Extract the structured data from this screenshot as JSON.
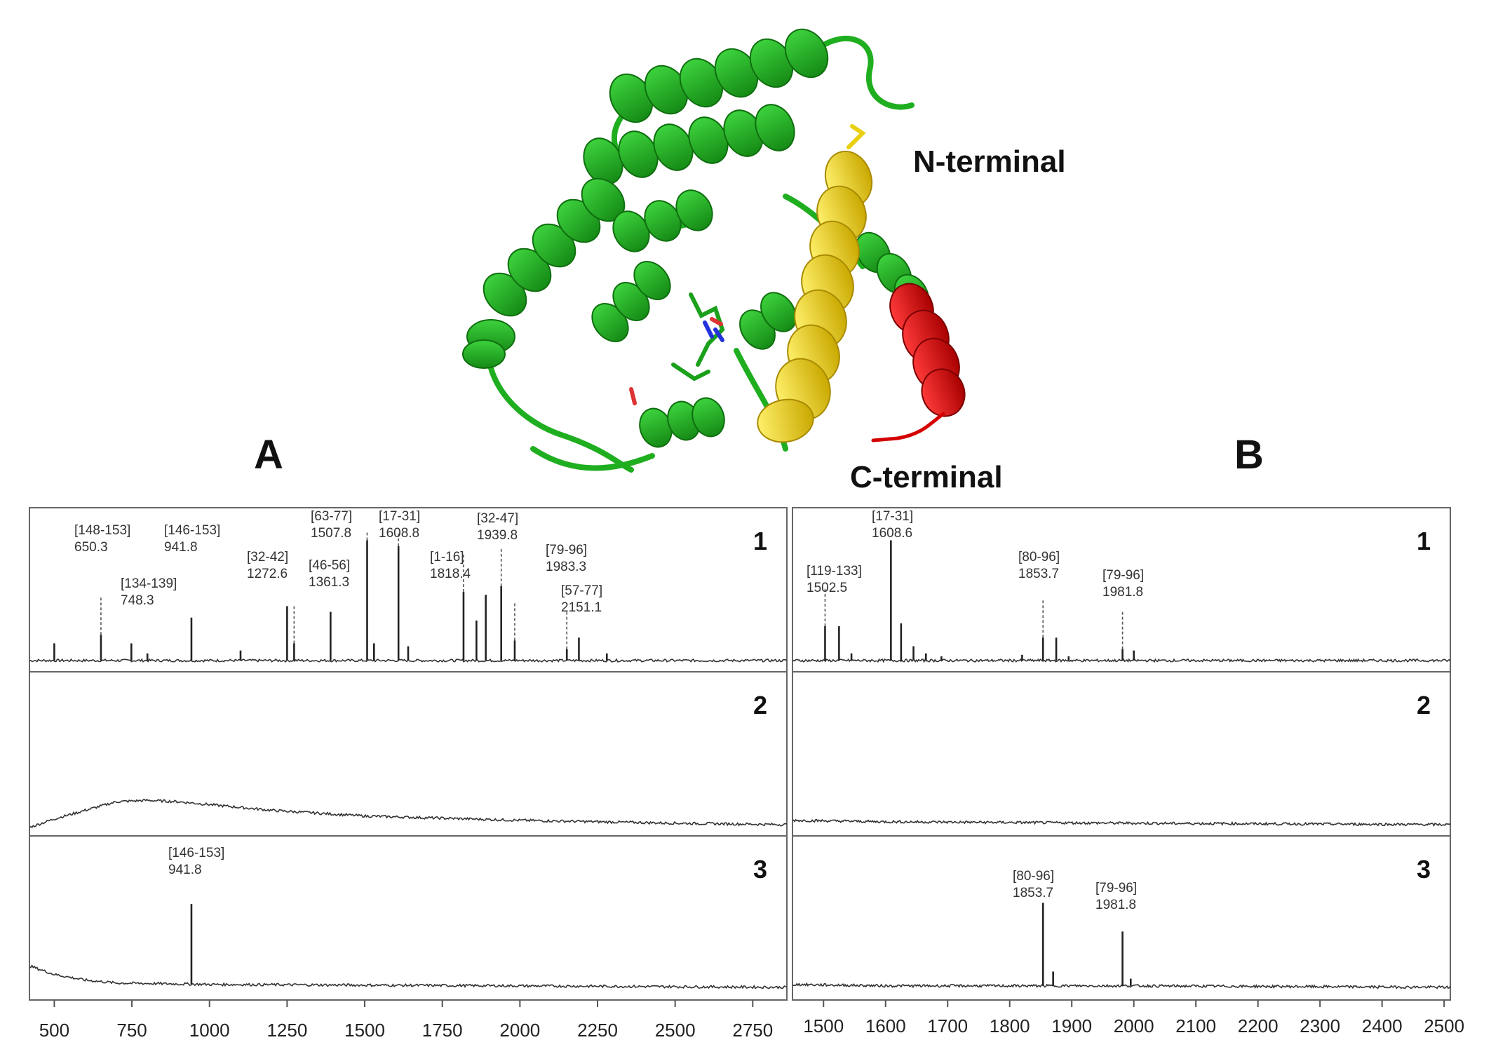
{
  "structure": {
    "n_label": "N-terminal",
    "c_label": "C-terminal",
    "colors": {
      "helix": "#22bb22",
      "helix_dark": "#158a15",
      "n_terminal": "#f0dc14",
      "c_terminal": "#e01010"
    }
  },
  "chart_data": [
    {
      "type": "line",
      "panel": "A",
      "x_ticks": [
        500,
        750,
        1000,
        1250,
        1500,
        1750,
        2000,
        2250,
        2500,
        2750
      ],
      "xlim": [
        420,
        2860
      ],
      "traces": [
        {
          "number": "1",
          "peaks": [
            {
              "x": 500,
              "h": 0.12
            },
            {
              "x": 650.3,
              "h": 0.18
            },
            {
              "x": 748.3,
              "h": 0.12
            },
            {
              "x": 800,
              "h": 0.05
            },
            {
              "x": 941.8,
              "h": 0.3
            },
            {
              "x": 1100,
              "h": 0.07
            },
            {
              "x": 1250,
              "h": 0.38
            },
            {
              "x": 1272.6,
              "h": 0.12
            },
            {
              "x": 1390,
              "h": 0.34
            },
            {
              "x": 1507.8,
              "h": 0.84
            },
            {
              "x": 1530,
              "h": 0.12
            },
            {
              "x": 1608.8,
              "h": 0.8
            },
            {
              "x": 1640,
              "h": 0.1
            },
            {
              "x": 1818.4,
              "h": 0.48
            },
            {
              "x": 1860,
              "h": 0.28
            },
            {
              "x": 1890,
              "h": 0.46
            },
            {
              "x": 1939.8,
              "h": 0.52
            },
            {
              "x": 1983.3,
              "h": 0.14
            },
            {
              "x": 2151.1,
              "h": 0.08
            },
            {
              "x": 2190,
              "h": 0.16
            },
            {
              "x": 2280,
              "h": 0.05
            }
          ],
          "labels": [
            {
              "range": "[148-153]",
              "mass": "650.3"
            },
            {
              "range": "[146-153]",
              "mass": "941.8"
            },
            {
              "range": "[134-139]",
              "mass": "748.3"
            },
            {
              "range": "[32-42]",
              "mass": "1272.6"
            },
            {
              "range": "[63-77]",
              "mass": "1507.8"
            },
            {
              "range": "[46-56]",
              "mass": "1361.3"
            },
            {
              "range": "[17-31]",
              "mass": "1608.8"
            },
            {
              "range": "[1-16]",
              "mass": "1818.4"
            },
            {
              "range": "[32-47]",
              "mass": "1939.8"
            },
            {
              "range": "[79-96]",
              "mass": "1983.3"
            },
            {
              "range": "[57-77]",
              "mass": "2151.1"
            }
          ]
        },
        {
          "number": "2",
          "baseline": [
            [
              420,
              0.0
            ],
            [
              500,
              0.06
            ],
            [
              600,
              0.12
            ],
            [
              700,
              0.18
            ],
            [
              800,
              0.19
            ],
            [
              900,
              0.18
            ],
            [
              1000,
              0.16
            ],
            [
              1200,
              0.12
            ],
            [
              1500,
              0.08
            ],
            [
              2000,
              0.05
            ],
            [
              2500,
              0.03
            ],
            [
              2860,
              0.02
            ]
          ],
          "peaks": [],
          "labels": []
        },
        {
          "number": "3",
          "baseline": [
            [
              420,
              0.18
            ],
            [
              500,
              0.12
            ],
            [
              600,
              0.08
            ],
            [
              700,
              0.06
            ],
            [
              1000,
              0.05
            ],
            [
              2000,
              0.04
            ],
            [
              2860,
              0.03
            ]
          ],
          "peaks": [
            {
              "x": 941.8,
              "h": 0.56
            }
          ],
          "labels": [
            {
              "range": "[146-153]",
              "mass": "941.8"
            }
          ]
        }
      ]
    },
    {
      "type": "line",
      "panel": "B",
      "x_ticks": [
        1500,
        1600,
        1700,
        1800,
        1900,
        2000,
        2100,
        2200,
        2300,
        2400,
        2500
      ],
      "xlim": [
        1450,
        2510
      ],
      "traces": [
        {
          "number": "1",
          "peaks": [
            {
              "x": 1502.5,
              "h": 0.24
            },
            {
              "x": 1525,
              "h": 0.24
            },
            {
              "x": 1545,
              "h": 0.05
            },
            {
              "x": 1608.6,
              "h": 0.84
            },
            {
              "x": 1625,
              "h": 0.26
            },
            {
              "x": 1645,
              "h": 0.1
            },
            {
              "x": 1665,
              "h": 0.05
            },
            {
              "x": 1690,
              "h": 0.03
            },
            {
              "x": 1820,
              "h": 0.04
            },
            {
              "x": 1853.7,
              "h": 0.16
            },
            {
              "x": 1875,
              "h": 0.16
            },
            {
              "x": 1895,
              "h": 0.03
            },
            {
              "x": 1981.8,
              "h": 0.08
            },
            {
              "x": 2000,
              "h": 0.07
            }
          ],
          "labels": [
            {
              "range": "[119-133]",
              "mass": "1502.5"
            },
            {
              "range": "[17-31]",
              "mass": "1608.6"
            },
            {
              "range": "[80-96]",
              "mass": "1853.7"
            },
            {
              "range": "[79-96]",
              "mass": "1981.8"
            }
          ]
        },
        {
          "number": "2",
          "baseline": [
            [
              1450,
              0.05
            ],
            [
              1600,
              0.04
            ],
            [
              2000,
              0.03
            ],
            [
              2510,
              0.02
            ]
          ],
          "peaks": [],
          "labels": []
        },
        {
          "number": "3",
          "baseline": [
            [
              1450,
              0.05
            ],
            [
              1600,
              0.04
            ],
            [
              2000,
              0.04
            ],
            [
              2510,
              0.03
            ]
          ],
          "peaks": [
            {
              "x": 1853.7,
              "h": 0.58
            },
            {
              "x": 1870,
              "h": 0.1
            },
            {
              "x": 1981.8,
              "h": 0.38
            },
            {
              "x": 1995,
              "h": 0.05
            }
          ],
          "labels": [
            {
              "range": "[80-96]",
              "mass": "1853.7"
            },
            {
              "range": "[79-96]",
              "mass": "1981.8"
            }
          ]
        }
      ]
    }
  ]
}
